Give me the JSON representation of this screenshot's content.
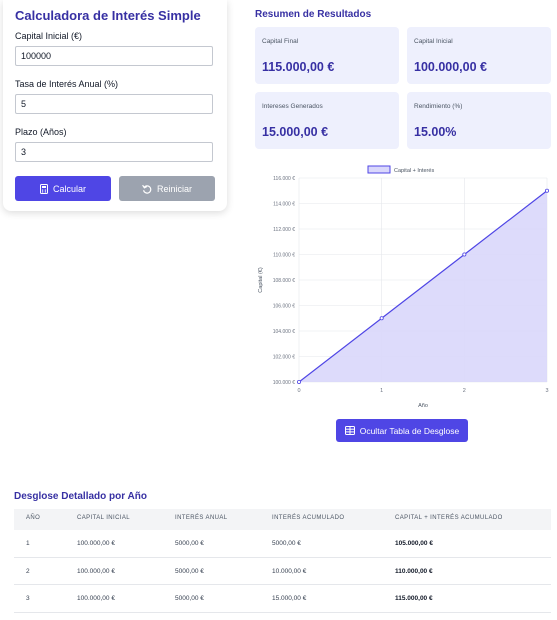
{
  "calculator": {
    "title": "Calculadora de Interés Simple",
    "capital_label": "Capital Inicial (€)",
    "capital_value": "100000",
    "rate_label": "Tasa de Interés Anual (%)",
    "rate_value": "5",
    "term_label": "Plazo (Años)",
    "term_value": "3",
    "calc_button": "Calcular",
    "reset_button": "Reiniciar",
    "calc_icon": "calculator-icon",
    "reset_icon": "undo-icon"
  },
  "summary": {
    "title": "Resumen de Resultados",
    "cards": [
      {
        "label": "Capital Final",
        "value": "115.000,00 €"
      },
      {
        "label": "Capital Inicial",
        "value": "100.000,00 €"
      },
      {
        "label": "Intereses Generados",
        "value": "15.000,00 €"
      },
      {
        "label": "Rendimiento (%)",
        "value": "15.00%"
      }
    ]
  },
  "chart_data": {
    "type": "area",
    "legend": "Capital + Interés",
    "legend_position": "top",
    "xlabel": "Año",
    "ylabel": "Capital (€)",
    "x": [
      0,
      1,
      2,
      3
    ],
    "y": [
      100000,
      105000,
      110000,
      115000
    ],
    "x_ticks": [
      "0",
      "1",
      "2",
      "3"
    ],
    "y_ticks": [
      {
        "value": 100000,
        "label": "100.000 €"
      },
      {
        "value": 102000,
        "label": "102.000 €"
      },
      {
        "value": 104000,
        "label": "104.000 €"
      },
      {
        "value": 106000,
        "label": "106.000 €"
      },
      {
        "value": 108000,
        "label": "108.000 €"
      },
      {
        "value": 110000,
        "label": "110.000 €"
      },
      {
        "value": 112000,
        "label": "112.000 €"
      },
      {
        "value": 114000,
        "label": "114.000 €"
      },
      {
        "value": 116000,
        "label": "116.000 €"
      }
    ],
    "ylim": [
      100000,
      116000
    ],
    "xlim": [
      0,
      3
    ],
    "grid": true,
    "line_color": "#4f46e5",
    "fill_color": "#d9d7fb"
  },
  "breakdown": {
    "toggle_button": "Ocultar Tabla de Desglose",
    "toggle_icon": "table-icon",
    "title": "Desglose Detallado por Año",
    "headers": [
      "AÑO",
      "CAPITAL INICIAL",
      "INTERÉS ANUAL",
      "INTERÉS ACUMULADO",
      "CAPITAL + INTERÉS ACUMULADO"
    ],
    "rows": [
      [
        "1",
        "100.000,00 €",
        "5000,00 €",
        "5000,00 €",
        "105.000,00 €"
      ],
      [
        "2",
        "100.000,00 €",
        "5000,00 €",
        "10.000,00 €",
        "110.000,00 €"
      ],
      [
        "3",
        "100.000,00 €",
        "5000,00 €",
        "15.000,00 €",
        "115.000,00 €"
      ]
    ]
  }
}
